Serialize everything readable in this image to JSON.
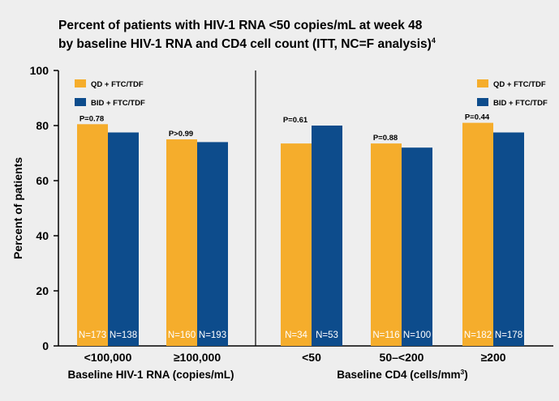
{
  "title_line1": "Percent of patients with HIV-1 RNA <50 copies/mL at week 48",
  "title_line2": "by baseline HIV-1 RNA and CD4 cell count (ITT, NC=F analysis)",
  "title_ref": "4",
  "colors": {
    "qd": "#f5ad2c",
    "bid": "#0d4c8c",
    "background": "#eeeeee",
    "axis": "#000000"
  },
  "chart_data": {
    "type": "bar",
    "ylabel": "Percent of patients",
    "ylim": [
      0,
      100
    ],
    "yticks": [
      0,
      20,
      40,
      60,
      80,
      100
    ],
    "grid": false,
    "legend_position": "top-left and top-right (one per panel)",
    "series": [
      {
        "name": "QD + FTC/TDF",
        "color": "#f5ad2c"
      },
      {
        "name": "BID + FTC/TDF",
        "color": "#0d4c8c"
      }
    ],
    "panels": [
      {
        "xlabel": "Baseline HIV-1 RNA (copies/mL)",
        "groups": [
          {
            "category": "<100,000",
            "values": [
              80.5,
              77.5
            ],
            "n": [
              "N=173",
              "N=138"
            ],
            "p": "P=0.78"
          },
          {
            "category": "≥100,000",
            "values": [
              75,
              74
            ],
            "n": [
              "N=160",
              "N=193"
            ],
            "p": "P>0.99"
          }
        ]
      },
      {
        "xlabel": "Baseline CD4 (cells/mm",
        "xlabel_sup": "3",
        "xlabel_end": ")",
        "groups": [
          {
            "category": "<50",
            "values": [
              73.5,
              80
            ],
            "n": [
              "N=34",
              "N=53"
            ],
            "p": "P=0.61"
          },
          {
            "category": "50–<200",
            "values": [
              73.5,
              72
            ],
            "n": [
              "N=116",
              "N=100"
            ],
            "p": "P=0.88"
          },
          {
            "category": "≥200",
            "values": [
              81,
              77.5
            ],
            "n": [
              "N=182",
              "N=178"
            ],
            "p": "P=0.44"
          }
        ]
      }
    ]
  }
}
